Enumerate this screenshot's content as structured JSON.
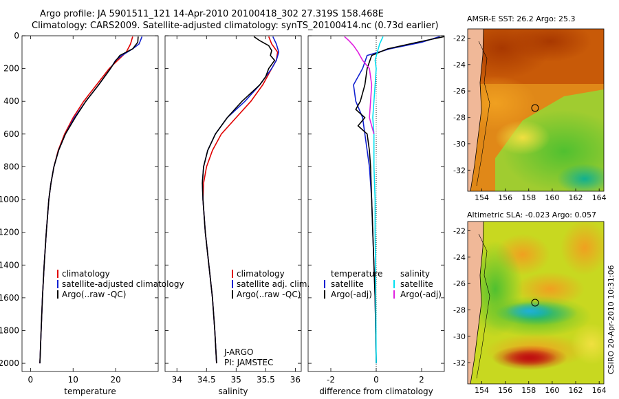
{
  "header": {
    "title_line1": "Argo profile: JA 5901511_121 14-Apr-2010 20100418_302 27.319S 158.468E",
    "title_line2": "Climatology: CARS2009. Satellite-adjusted climatology: synTS_20100414.nc (0.73d earlier)"
  },
  "colors": {
    "climatology": "#e00000",
    "satellite": "#1020d0",
    "argo": "#000000",
    "satellite_salinity": "#00e0f0",
    "argo_salinity": "#e020e0"
  },
  "chart_data": [
    {
      "type": "line",
      "id": "temperature",
      "xlabel": "temperature",
      "ylabel": "",
      "xlim": [
        -2,
        30
      ],
      "ylim": [
        2050,
        0
      ],
      "x_ticks": [
        0,
        10,
        20
      ],
      "y_ticks": [
        0,
        200,
        400,
        600,
        800,
        1000,
        1200,
        1400,
        1600,
        1800,
        2000
      ],
      "legend": [
        "climatology",
        "satellite-adjusted climatology",
        "Argo(..raw -QC)"
      ],
      "series": [
        {
          "name": "climatology",
          "color": "#e00000",
          "depth": [
            5,
            50,
            100,
            150,
            200,
            300,
            400,
            500,
            600,
            700,
            800,
            900,
            1000,
            1200,
            1400,
            1600,
            1800,
            2000
          ],
          "values": [
            24.0,
            23.5,
            22.5,
            20.5,
            18.5,
            15.5,
            12.5,
            10.0,
            8.0,
            6.5,
            5.5,
            4.8,
            4.3,
            3.7,
            3.2,
            2.8,
            2.5,
            2.2
          ]
        },
        {
          "name": "satellite-adjusted climatology",
          "color": "#1020d0",
          "depth": [
            5,
            50,
            80,
            120,
            150,
            200,
            300,
            400,
            500,
            600,
            700,
            800,
            900,
            1000,
            1200,
            1400,
            1600,
            1800,
            2000
          ],
          "values": [
            26.2,
            25.5,
            24.0,
            21.5,
            20.0,
            18.8,
            16.0,
            13.0,
            10.3,
            8.2,
            6.6,
            5.5,
            4.8,
            4.3,
            3.7,
            3.2,
            2.8,
            2.5,
            2.2
          ]
        },
        {
          "name": "Argo(..raw -QC)",
          "color": "#000000",
          "depth": [
            5,
            40,
            80,
            120,
            160,
            200,
            300,
            400,
            500,
            600,
            700,
            800,
            900,
            1000,
            1200,
            1400,
            1600,
            1800,
            2000
          ],
          "values": [
            25.3,
            25.2,
            24.0,
            21.0,
            19.8,
            18.8,
            16.0,
            13.0,
            10.5,
            8.2,
            6.6,
            5.5,
            4.8,
            4.3,
            3.7,
            3.2,
            2.8,
            2.5,
            2.2
          ]
        }
      ]
    },
    {
      "type": "line",
      "id": "salinity",
      "xlabel": "salinity",
      "ylabel": "",
      "xlim": [
        33.8,
        36.1
      ],
      "ylim": [
        2050,
        0
      ],
      "x_ticks": [
        34,
        34.5,
        35,
        35.5,
        36
      ],
      "legend": [
        "climatology",
        "satellite adj. clim.",
        "Argo(..raw -QC)"
      ],
      "annotation": [
        "J-ARGO",
        "PI: JAMSTEC"
      ],
      "series": [
        {
          "name": "climatology",
          "color": "#e00000",
          "depth": [
            5,
            50,
            100,
            150,
            200,
            300,
            400,
            500,
            600,
            700,
            800,
            900,
            1000,
            1200,
            1400,
            1600,
            1800,
            2000
          ],
          "values": [
            35.55,
            35.6,
            35.7,
            35.68,
            35.6,
            35.45,
            35.25,
            35.0,
            34.75,
            34.6,
            34.5,
            34.45,
            34.44,
            34.48,
            34.54,
            34.6,
            34.64,
            34.67
          ]
        },
        {
          "name": "satellite adj. clim.",
          "color": "#1020d0",
          "depth": [
            5,
            50,
            100,
            150,
            200,
            300,
            400,
            500,
            600,
            700,
            800,
            900,
            1000,
            1200,
            1400,
            1600,
            1800,
            2000
          ],
          "values": [
            35.62,
            35.68,
            35.72,
            35.68,
            35.6,
            35.4,
            35.15,
            34.85,
            34.65,
            34.52,
            34.45,
            34.43,
            34.44,
            34.48,
            34.54,
            34.6,
            34.64,
            34.67
          ]
        },
        {
          "name": "Argo(..raw -QC)",
          "color": "#000000",
          "depth": [
            5,
            30,
            60,
            90,
            120,
            150,
            200,
            250,
            300,
            400,
            500,
            600,
            700,
            800,
            900,
            1000,
            1200,
            1400,
            1600,
            1800,
            2000
          ],
          "values": [
            35.3,
            35.4,
            35.55,
            35.6,
            35.58,
            35.65,
            35.55,
            35.5,
            35.4,
            35.1,
            34.85,
            34.65,
            34.52,
            34.45,
            34.43,
            34.44,
            34.48,
            34.54,
            34.6,
            34.64,
            34.67
          ]
        }
      ]
    },
    {
      "type": "line",
      "id": "difference",
      "xlabel": "difference from climatology",
      "ylabel": "",
      "xlim": [
        -3,
        3
      ],
      "ylim": [
        2050,
        0
      ],
      "x_ticks": [
        -2,
        0,
        2
      ],
      "legend_temperature": {
        "title": "temperature",
        "entries": [
          "satellite",
          "Argo(-adj)"
        ]
      },
      "legend_salinity": {
        "title": "salinity",
        "entries": [
          "satellite",
          "Argo(-adj)"
        ]
      },
      "series": [
        {
          "name": "temperature satellite",
          "color": "#1020d0",
          "depth": [
            5,
            40,
            80,
            120,
            200,
            300,
            400,
            500,
            600,
            700,
            800,
            1000,
            1200,
            1400,
            1600,
            2000
          ],
          "values": [
            2.8,
            2.0,
            0.6,
            -0.4,
            -0.6,
            -1.0,
            -0.9,
            -0.6,
            -0.5,
            -0.4,
            -0.3,
            -0.2,
            -0.15,
            -0.1,
            -0.05,
            0.0
          ]
        },
        {
          "name": "temperature Argo(-adj)",
          "color": "#000000",
          "depth": [
            5,
            40,
            80,
            120,
            200,
            300,
            400,
            450,
            500,
            550,
            600,
            700,
            800,
            1000,
            1200,
            1400,
            1600,
            2000
          ],
          "values": [
            3.0,
            1.8,
            0.5,
            -0.2,
            -0.4,
            -0.5,
            -0.7,
            -0.9,
            -0.5,
            -0.8,
            -0.4,
            -0.3,
            -0.25,
            -0.2,
            -0.15,
            -0.1,
            -0.05,
            0.0
          ]
        },
        {
          "name": "salinity satellite",
          "color": "#00e0f0",
          "depth": [
            5,
            50,
            100,
            150,
            200,
            300,
            400,
            500,
            600,
            800,
            1000,
            1200,
            1400,
            1600,
            2000
          ],
          "values": [
            0.3,
            0.15,
            0.05,
            -0.05,
            0.0,
            -0.05,
            -0.1,
            -0.15,
            -0.1,
            -0.1,
            -0.05,
            -0.05,
            -0.03,
            -0.02,
            0.0
          ]
        },
        {
          "name": "salinity Argo(-adj)",
          "color": "#e020e0",
          "depth": [
            5,
            30,
            60,
            100,
            150,
            200,
            300,
            400,
            500,
            600
          ],
          "values": [
            -1.4,
            -1.2,
            -1.0,
            -0.8,
            -0.6,
            -0.3,
            -0.2,
            -0.25,
            -0.3,
            -0.1
          ]
        }
      ]
    },
    {
      "type": "heatmap",
      "id": "sst_map",
      "title": "AMSR-E SST: 26.2 Argo: 25.3",
      "x_ticks": [
        154,
        156,
        158,
        160,
        162,
        164
      ],
      "y_ticks": [
        -22,
        -24,
        -26,
        -28,
        -30,
        -32
      ],
      "xlim": [
        152.8,
        164.4
      ],
      "ylim": [
        -33.6,
        -21.3
      ],
      "argo_position": [
        158.468,
        -27.319
      ]
    },
    {
      "type": "heatmap",
      "id": "sla_map",
      "title": "Altimetric SLA: -0.023 Argo: 0.057",
      "x_ticks": [
        154,
        156,
        158,
        160,
        162,
        164
      ],
      "y_ticks": [
        -22,
        -24,
        -26,
        -28,
        -30,
        -32
      ],
      "xlim": [
        152.8,
        164.4
      ],
      "ylim": [
        -33.6,
        -21.3
      ],
      "argo_position": [
        158.468,
        -27.319
      ]
    }
  ],
  "footer": {
    "side_label": "CSIRO 20-Apr-2010 10:31:06"
  }
}
